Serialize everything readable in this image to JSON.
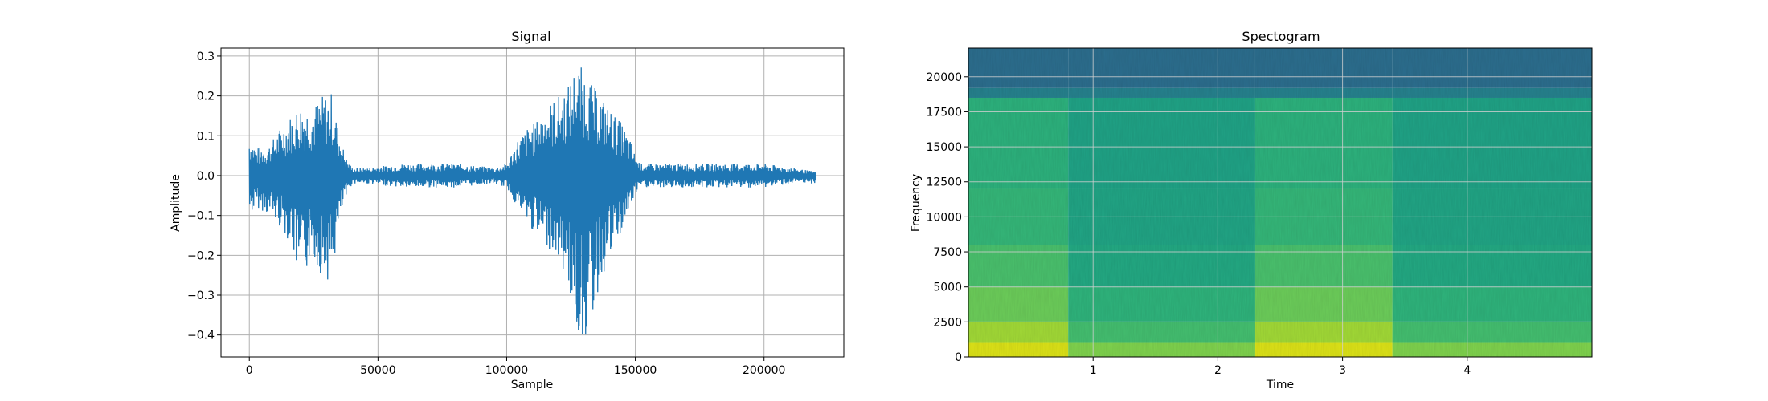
{
  "chart_data": [
    {
      "type": "line",
      "title": "Signal",
      "xlabel": "Sample",
      "ylabel": "Amplitude",
      "xlim": [
        -11000,
        231000
      ],
      "ylim": [
        -0.455,
        0.32
      ],
      "grid": true,
      "xticks": [
        0,
        50000,
        100000,
        150000,
        200000
      ],
      "xtick_labels": [
        "0",
        "50000",
        "100000",
        "150000",
        "200000"
      ],
      "yticks": [
        -0.4,
        -0.3,
        -0.2,
        -0.1,
        0.0,
        0.1,
        0.2,
        0.3
      ],
      "ytick_labels": [
        "−0.4",
        "−0.3",
        "−0.2",
        "−0.1",
        "0.0",
        "0.1",
        "0.2",
        "0.3"
      ],
      "color": "#1f77b4",
      "series": [
        {
          "x": [
            0,
            3000,
            8000,
            12000,
            16000,
            20000,
            24000,
            28000,
            32000,
            34000,
            36000,
            38000,
            40000,
            45000,
            60000,
            80000,
            95000,
            100000,
            104000,
            108000,
            112000,
            116000,
            120000,
            124000,
            127000,
            130000,
            133000,
            137000,
            141000,
            145000,
            148000,
            150000,
            152000,
            160000,
            180000,
            200000,
            210000,
            220000
          ],
          "upper": [
            0.1,
            0.07,
            0.08,
            0.12,
            0.15,
            0.18,
            0.17,
            0.2,
            0.21,
            0.14,
            0.08,
            0.04,
            0.02,
            0.02,
            0.03,
            0.03,
            0.02,
            0.03,
            0.09,
            0.12,
            0.14,
            0.18,
            0.2,
            0.23,
            0.28,
            0.27,
            0.23,
            0.2,
            0.16,
            0.13,
            0.09,
            0.05,
            0.03,
            0.03,
            0.03,
            0.03,
            0.02,
            0.01
          ],
          "lower": [
            -0.1,
            -0.08,
            -0.1,
            -0.13,
            -0.17,
            -0.29,
            -0.2,
            -0.25,
            -0.27,
            -0.17,
            -0.09,
            -0.05,
            -0.02,
            -0.02,
            -0.03,
            -0.03,
            -0.02,
            -0.03,
            -0.08,
            -0.12,
            -0.16,
            -0.18,
            -0.21,
            -0.28,
            -0.4,
            -0.42,
            -0.37,
            -0.26,
            -0.2,
            -0.14,
            -0.08,
            -0.05,
            -0.03,
            -0.03,
            -0.03,
            -0.03,
            -0.02,
            -0.02
          ]
        }
      ]
    },
    {
      "type": "heatmap",
      "title": "Spectogram",
      "xlabel": "Time",
      "ylabel": "Frequency",
      "xlim": [
        0,
        5.0
      ],
      "ylim": [
        0,
        22050
      ],
      "grid": true,
      "xticks": [
        1,
        2,
        3,
        4
      ],
      "xtick_labels": [
        "1",
        "2",
        "3",
        "4"
      ],
      "yticks": [
        0,
        2500,
        5000,
        7500,
        10000,
        12500,
        15000,
        17500,
        20000
      ],
      "ytick_labels": [
        "0",
        "2500",
        "5000",
        "7500",
        "10000",
        "12500",
        "15000",
        "17500",
        "20000"
      ],
      "bands": [
        {
          "from": 0,
          "to": 1000,
          "active": "#dde318",
          "quiet": "#7fd34e"
        },
        {
          "from": 1000,
          "to": 2500,
          "active": "#a2da37",
          "quiet": "#44bf70"
        },
        {
          "from": 2500,
          "to": 5000,
          "active": "#6ccd5a",
          "quiet": "#2fb47c"
        },
        {
          "from": 5000,
          "to": 8000,
          "active": "#4ac16d",
          "quiet": "#23a983"
        },
        {
          "from": 8000,
          "to": 12000,
          "active": "#35b779",
          "quiet": "#21a585"
        },
        {
          "from": 12000,
          "to": 18500,
          "active": "#2db27d",
          "quiet": "#20a386"
        },
        {
          "from": 18500,
          "to": 19200,
          "active": "#26828e",
          "quiet": "#26828e"
        },
        {
          "from": 19200,
          "to": 22050,
          "active": "#2c6e8e",
          "quiet": "#2c6e8e"
        }
      ],
      "active_segments": [
        [
          0,
          0.8
        ],
        [
          2.3,
          3.4
        ]
      ]
    }
  ]
}
